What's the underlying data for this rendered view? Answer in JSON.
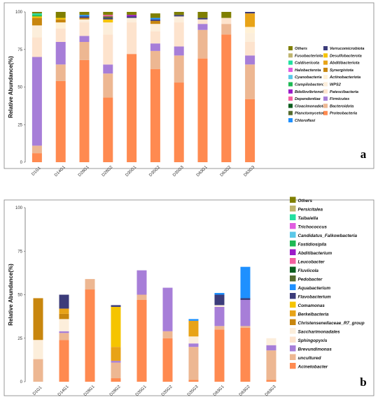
{
  "chart_data": [
    {
      "type": "bar",
      "stacked": true,
      "panel_label": "a",
      "ylabel": "Relative Abundance(%)",
      "ylim": [
        0,
        100
      ],
      "yticks": [
        0,
        25,
        50,
        75,
        100
      ],
      "categories": [
        "D1G1",
        "D14G1",
        "D28G1",
        "D28G2",
        "D35G1",
        "D35G2",
        "D35G3",
        "D63G1",
        "D63G2",
        "D63G3"
      ],
      "legend_position": "right",
      "series": [
        {
          "name": "Proteobacteria",
          "color": "#FF8A50",
          "values": [
            6,
            54,
            68,
            43,
            72,
            62,
            53,
            69,
            85,
            42
          ]
        },
        {
          "name": "Bacteroidota",
          "color": "#EDB792",
          "values": [
            5,
            11,
            12,
            16,
            0,
            12,
            18,
            19,
            7,
            23
          ]
        },
        {
          "name": "Firmicutes",
          "color": "#A77ED8",
          "values": [
            59,
            15,
            4,
            6,
            0,
            5,
            6,
            4,
            0,
            6
          ]
        },
        {
          "name": "Patescibacteria",
          "color": "#FDE3CD",
          "values": [
            13,
            9,
            9,
            20,
            21,
            8,
            16,
            3,
            4,
            9
          ]
        },
        {
          "name": "WPS2",
          "color": "#FCEEDB",
          "values": [
            8,
            0,
            2,
            8,
            3,
            5,
            4,
            0,
            0,
            6
          ]
        },
        {
          "name": "Actinobacteriota",
          "color": "#FFF1D6",
          "values": [
            0,
            4,
            0,
            0,
            0,
            0,
            0,
            0,
            0,
            4
          ]
        },
        {
          "name": "Synergistota",
          "color": "#C8860E",
          "values": [
            5,
            2,
            1,
            0,
            0,
            2,
            0,
            0,
            0,
            0
          ]
        },
        {
          "name": "Abditibacteriota",
          "color": "#E8A317",
          "values": [
            0,
            0,
            0,
            0,
            0,
            0,
            0,
            0,
            0,
            9
          ]
        },
        {
          "name": "Desulfobacterota",
          "color": "#F5C400",
          "values": [
            1,
            1,
            0,
            2,
            0,
            0,
            0,
            0,
            0,
            0
          ]
        },
        {
          "name": "Verrucomicrobiota",
          "color": "#3C3C7A",
          "values": [
            0,
            0,
            1,
            1,
            1,
            1,
            1,
            1,
            0,
            1
          ]
        },
        {
          "name": "Chloroflexi",
          "color": "#1E90FF",
          "values": [
            0,
            0,
            1,
            0,
            0,
            1,
            0,
            0,
            0,
            0
          ]
        },
        {
          "name": "Planctomycetota",
          "color": "#556B2F",
          "values": [
            0,
            0,
            0,
            1,
            0,
            0,
            0,
            0,
            0,
            0
          ]
        },
        {
          "name": "Cloacimonadota",
          "color": "#0B5D1E",
          "values": [
            0,
            0,
            0,
            0,
            0,
            0,
            0,
            0,
            0,
            0
          ]
        },
        {
          "name": "Dependentiae",
          "color": "#F55FA0",
          "values": [
            0,
            0,
            0,
            1,
            0,
            0,
            0,
            0,
            0,
            0
          ]
        },
        {
          "name": "Bdellovibrionota",
          "color": "#9B19C8",
          "values": [
            0,
            0,
            0,
            0,
            1,
            0,
            0,
            0,
            0,
            0
          ]
        },
        {
          "name": "Campilobacterota",
          "color": "#1DB954",
          "values": [
            1,
            0,
            0,
            0,
            0,
            0,
            0,
            0,
            0,
            0
          ]
        },
        {
          "name": "Cyanobacteria",
          "color": "#5BC8E8",
          "values": [
            0,
            0,
            0,
            0,
            0,
            0,
            0,
            0,
            0,
            0
          ]
        },
        {
          "name": "Halobacterota",
          "color": "#E05CE0",
          "values": [
            0,
            0,
            0,
            0,
            0,
            0,
            0,
            0,
            0,
            0
          ]
        },
        {
          "name": "Caldisericota",
          "color": "#22E0A0",
          "values": [
            1,
            0,
            0,
            0,
            0,
            0,
            0,
            0,
            0,
            0
          ]
        },
        {
          "name": "Fusobacteriota",
          "color": "#BFB56E",
          "values": [
            0,
            0,
            0,
            0,
            0,
            0,
            0,
            0,
            0,
            0
          ]
        },
        {
          "name": "Others",
          "color": "#7F7F00",
          "values": [
            1,
            4,
            2,
            2,
            2,
            3,
            2,
            4,
            4,
            0
          ]
        }
      ]
    },
    {
      "type": "bar",
      "stacked": true,
      "panel_label": "b",
      "ylabel": "Relative Abundance(%)",
      "ylim": [
        0,
        100
      ],
      "yticks": [
        0,
        25,
        50,
        75,
        100
      ],
      "categories": [
        "D1G1",
        "D14G1",
        "D28G1",
        "D28G2",
        "D35G1",
        "D35G2",
        "D35G3",
        "D63G1",
        "D63G2",
        "D63G3"
      ],
      "legend_position": "right",
      "series": [
        {
          "name": "Acinetobacter",
          "color": "#FF8A50",
          "values": [
            0,
            24,
            53,
            2,
            47,
            25,
            1,
            30,
            31,
            1
          ]
        },
        {
          "name": "uncultured",
          "color": "#EDB792",
          "values": [
            13,
            4,
            6,
            9,
            3,
            4,
            19,
            2,
            1,
            17
          ]
        },
        {
          "name": "Brevundimonas",
          "color": "#A77ED8",
          "values": [
            0,
            1,
            0,
            1,
            14,
            25,
            2,
            11,
            15,
            3
          ]
        },
        {
          "name": "Sphingopyxis",
          "color": "#FDE3CD",
          "values": [
            0,
            0,
            0,
            0,
            0,
            0,
            0,
            0,
            0,
            0
          ]
        },
        {
          "name": "Saccharimonadales",
          "color": "#FCEEDB",
          "values": [
            11,
            7,
            0,
            0,
            0,
            0,
            4,
            1,
            0,
            4
          ]
        },
        {
          "name": "Christensenellaceae_R7_group",
          "color": "#C8860E",
          "values": [
            24,
            3,
            0,
            0,
            0,
            0,
            0,
            0,
            0,
            0
          ]
        },
        {
          "name": "Berkelbacteria",
          "color": "#E8A317",
          "values": [
            0,
            3,
            0,
            8,
            0,
            0,
            9,
            0,
            0,
            0
          ]
        },
        {
          "name": "Comamonas",
          "color": "#F5C400",
          "values": [
            0,
            0,
            0,
            23,
            0,
            0,
            0,
            0,
            0,
            0
          ]
        },
        {
          "name": "Flavobacterium",
          "color": "#3C3C7A",
          "values": [
            0,
            8,
            0,
            1,
            0,
            0,
            0,
            6,
            1,
            0
          ]
        },
        {
          "name": "Aquabacterium",
          "color": "#1E90FF",
          "values": [
            0,
            0,
            0,
            0,
            0,
            0,
            1,
            1,
            18,
            0
          ]
        },
        {
          "name": "Pedobacter",
          "color": "#556B2F",
          "values": [
            0,
            0,
            0,
            0,
            0,
            0,
            0,
            0,
            0,
            0
          ]
        },
        {
          "name": "Fluviicola",
          "color": "#0B5D1E",
          "values": [
            0,
            0,
            0,
            0,
            0,
            0,
            0,
            0,
            0,
            0
          ]
        },
        {
          "name": "Leucobacter",
          "color": "#F55FA0",
          "values": [
            0,
            0,
            0,
            0,
            0,
            0,
            0,
            0,
            0,
            0
          ]
        },
        {
          "name": "Abditibacterium",
          "color": "#9B19C8",
          "values": [
            0,
            0,
            0,
            0,
            0,
            0,
            0,
            0,
            0,
            0
          ]
        },
        {
          "name": "Fastidiosipila",
          "color": "#1DB954",
          "values": [
            0,
            0,
            0,
            0,
            0,
            0,
            0,
            0,
            0,
            0
          ]
        },
        {
          "name": "Candidatus_Falkowbacteria",
          "color": "#5BC8E8",
          "values": [
            0,
            0,
            0,
            0,
            0,
            0,
            0,
            0,
            0,
            0
          ]
        },
        {
          "name": "Trichococcus",
          "color": "#E05CE0",
          "values": [
            0,
            0,
            0,
            0,
            0,
            0,
            0,
            0,
            0,
            0
          ]
        },
        {
          "name": "Taibaiella",
          "color": "#22E0A0",
          "values": [
            0,
            0,
            0,
            0,
            0,
            0,
            0,
            0,
            0,
            0
          ]
        },
        {
          "name": "Persicitalea",
          "color": "#BFB56E",
          "values": [
            0,
            0,
            0,
            0,
            0,
            0,
            0,
            0,
            0,
            0
          ]
        },
        {
          "name": "Others",
          "color": "#7F7F00",
          "values": [
            0,
            0,
            0,
            0,
            0,
            0,
            0,
            0,
            0,
            0
          ]
        }
      ]
    }
  ]
}
